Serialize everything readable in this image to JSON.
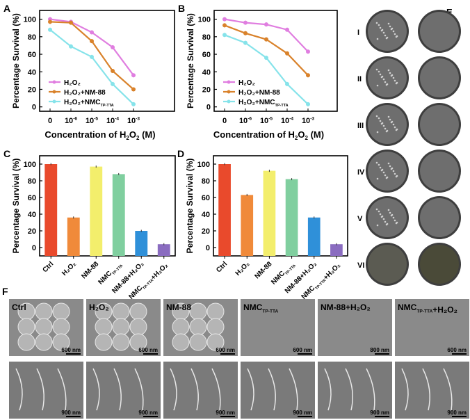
{
  "chart_data": [
    {
      "panel": "A",
      "type": "line",
      "xlabel": {
        "text": "Concentration of H",
        "sub": "2",
        "after": "O",
        "sub2": "2",
        "tail": " (M)"
      },
      "ylabel": "Percentage Survival (%)",
      "categories": [
        "0",
        "10-6",
        "10-5",
        "10-4",
        "10-3"
      ],
      "category_labels": [
        {
          "t": "0"
        },
        {
          "t": "10",
          "sup": "-6"
        },
        {
          "t": "10",
          "sup": "-5"
        },
        {
          "t": "10",
          "sup": "-4"
        },
        {
          "t": "10",
          "sup": "-3"
        }
      ],
      "ylim": [
        -5,
        110
      ],
      "yticks": [
        0,
        20,
        40,
        60,
        80,
        100
      ],
      "legend": "bottom-left",
      "series": [
        {
          "name": "H₂O₂",
          "color": "#e07ee0",
          "values": [
            100,
            97,
            85,
            68,
            36
          ]
        },
        {
          "name": "H₂O₂+NM-88",
          "color": "#d9822b",
          "values": [
            97,
            96,
            75,
            41,
            20
          ]
        },
        {
          "name": "H₂O₂+NMC",
          "name_sub": "TP-TTA",
          "color": "#86e3ea",
          "values": [
            88,
            69,
            57,
            26,
            3
          ]
        }
      ]
    },
    {
      "panel": "B",
      "type": "line",
      "xlabel": {
        "text": "Concentration of H",
        "sub": "2",
        "after": "O",
        "sub2": "2",
        "tail": " (M)"
      },
      "ylabel": "Percentage Survival (%)",
      "categories": [
        "0",
        "10-6",
        "10-5",
        "10-4",
        "10-3"
      ],
      "category_labels": [
        {
          "t": "0"
        },
        {
          "t": "10",
          "sup": "-6"
        },
        {
          "t": "10",
          "sup": "-5"
        },
        {
          "t": "10",
          "sup": "-4"
        },
        {
          "t": "10",
          "sup": "-3"
        }
      ],
      "ylim": [
        -5,
        110
      ],
      "yticks": [
        0,
        20,
        40,
        60,
        80,
        100
      ],
      "legend": "bottom-left",
      "series": [
        {
          "name": "H₂O₂",
          "color": "#e07ee0",
          "values": [
            100,
            96,
            94,
            88,
            63
          ]
        },
        {
          "name": "H₂O₂+NM-88",
          "color": "#d9822b",
          "values": [
            93,
            84,
            77,
            61,
            36
          ]
        },
        {
          "name": "H₂O₂+NMC",
          "name_sub": "TP-TTA",
          "color": "#86e3ea",
          "values": [
            82,
            73,
            56,
            26,
            3
          ]
        }
      ]
    },
    {
      "panel": "C",
      "type": "bar",
      "ylabel": "Percentage Survival (%)",
      "categories": [
        "Ctrl",
        "H₂O₂",
        "NM-88",
        "NMC TP-TTA",
        "NM-88+H₂O₂",
        "NMC TP-TTA +H₂O₂"
      ],
      "category_labels": [
        {
          "t": "Ctrl"
        },
        {
          "t": "H₂O₂"
        },
        {
          "t": "NM-88"
        },
        {
          "t": "NMC",
          "sub": "TP-TTA"
        },
        {
          "t": "NM-88+H₂O₂"
        },
        {
          "t": "NMC",
          "sub": "TP-TTA",
          "after": "+H₂O₂"
        }
      ],
      "values": [
        100,
        36,
        97,
        88,
        20,
        4
      ],
      "colors": [
        "#e94a2c",
        "#f08a3a",
        "#f3ee6c",
        "#80cf9f",
        "#2f90d9",
        "#8a6cc0"
      ],
      "ylim": [
        -10,
        110
      ],
      "yticks": [
        0,
        20,
        40,
        60,
        80,
        100
      ]
    },
    {
      "panel": "D",
      "type": "bar",
      "ylabel": "Percentage Survival (%)",
      "categories": [
        "Ctrl",
        "H₂O₂",
        "NM-88",
        "NMC TP-TTA",
        "NM-88+H₂O₂",
        "NMC TP-TTA +H₂O₂"
      ],
      "category_labels": [
        {
          "t": "Ctrl"
        },
        {
          "t": "H₂O₂"
        },
        {
          "t": "NM-88"
        },
        {
          "t": "NMC",
          "sub": "TP-TTA"
        },
        {
          "t": "NM-88+H₂O₂"
        },
        {
          "t": "NMC",
          "sub": "TP-TTA",
          "after": "+H₂O₂"
        }
      ],
      "values": [
        100,
        63,
        92,
        82,
        36,
        4
      ],
      "colors": [
        "#e94a2c",
        "#f08a3a",
        "#f3ee6c",
        "#80cf9f",
        "#2f90d9",
        "#8a6cc0"
      ],
      "ylim": [
        -10,
        110
      ],
      "yticks": [
        0,
        20,
        40,
        60,
        80,
        100
      ]
    }
  ],
  "panel_e": {
    "label": "E",
    "rows": [
      "I",
      "II",
      "III",
      "IV",
      "V",
      "VI"
    ]
  },
  "panel_f": {
    "label": "F",
    "columns": [
      {
        "t": "Ctrl"
      },
      {
        "t": "H₂O₂"
      },
      {
        "t": "NM-88"
      },
      {
        "t": "NMC",
        "sub": "TP-TTA"
      },
      {
        "t": "NM-88+H₂O₂"
      },
      {
        "t": "NMC",
        "sub": "TP-TTA",
        "after": "+H₂O₂"
      }
    ],
    "scale_top": [
      "600 nm",
      "600 nm",
      "600 nm",
      "600 nm",
      "800 nm",
      "600 nm"
    ],
    "scale_bottom": [
      "900 nm",
      "900 nm",
      "900 nm",
      "900 nm",
      "900 nm",
      "900 nm"
    ]
  }
}
